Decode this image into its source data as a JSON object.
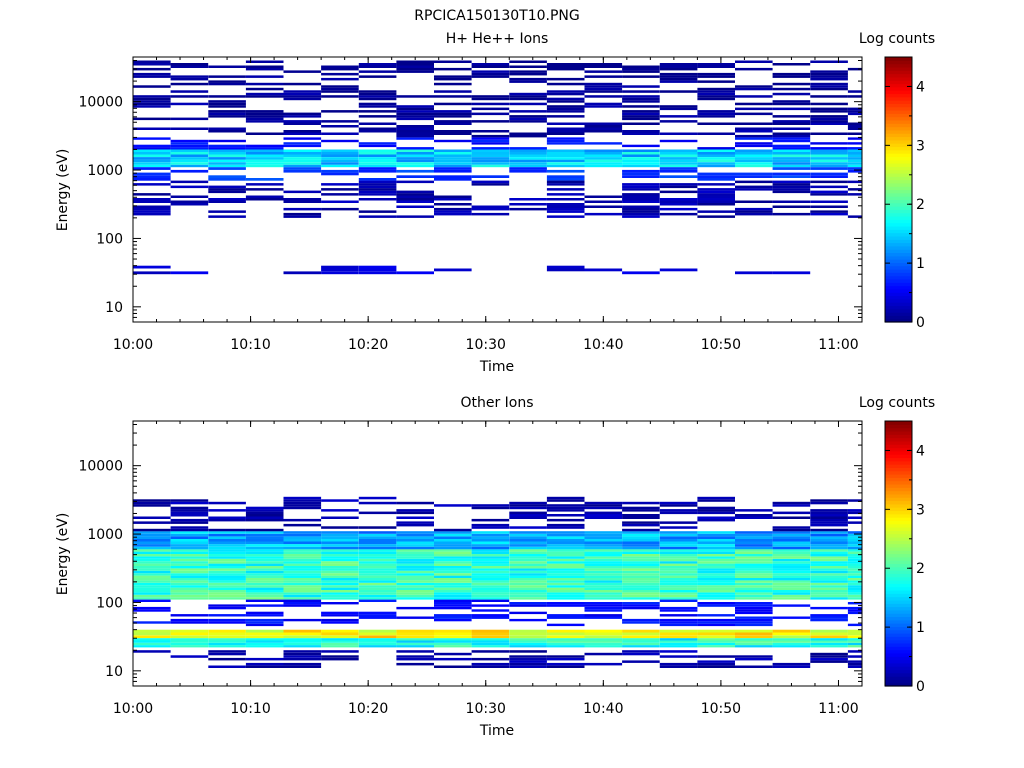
{
  "figure_title": "RPCICA150130T10.PNG",
  "chart_data": [
    {
      "type": "heatmap",
      "title": "H+ He++ Ions",
      "xlabel": "Time",
      "ylabel": "Energy (eV)",
      "x_ticks": [
        "10:00",
        "10:10",
        "10:20",
        "10:30",
        "10:40",
        "10:50",
        "11:00"
      ],
      "x_range": [
        "10:00",
        "11:02"
      ],
      "y_scale": "log",
      "y_ticks": [
        10,
        100,
        1000,
        10000
      ],
      "y_range": [
        6,
        45000
      ],
      "colorbar": {
        "label": "Log counts",
        "ticks": [
          0,
          1,
          2,
          3,
          4
        ],
        "range": [
          0,
          4.5
        ],
        "colormap": "jet"
      },
      "time_bins": [
        "10:01.6",
        "10:04.8",
        "10:08.0",
        "10:11.2",
        "10:14.4",
        "10:17.6",
        "10:20.8",
        "10:24.0",
        "10:27.2",
        "10:30.4",
        "10:33.6",
        "10:36.8",
        "10:40.0",
        "10:43.2",
        "10:46.4",
        "10:49.6",
        "10:52.8",
        "10:56.0",
        "10:59.2",
        "11:02.4"
      ],
      "bands": [
        {
          "energy_range": [
            1100,
            2000
          ],
          "log_counts": 1.5,
          "note": "main H+ band, roughly 1.3–1.7 across all time bins"
        },
        {
          "energy_range": [
            700,
            1100
          ],
          "log_counts": 0.8
        },
        {
          "energy_range": [
            2000,
            3000
          ],
          "log_counts": 0.6
        },
        {
          "energy_range": [
            200,
            700
          ],
          "log_counts": 0.2,
          "note": "sparse"
        },
        {
          "energy_range": [
            30,
            40
          ],
          "log_counts": 0.4,
          "note": "low-energy band"
        },
        {
          "energy_range": [
            3000,
            40000
          ],
          "log_counts": 0.1,
          "note": "sparse dark blue lines"
        }
      ]
    },
    {
      "type": "heatmap",
      "title": "Other Ions",
      "xlabel": "Time",
      "ylabel": "Energy (eV)",
      "x_ticks": [
        "10:00",
        "10:10",
        "10:20",
        "10:30",
        "10:40",
        "10:50",
        "11:00"
      ],
      "x_range": [
        "10:00",
        "11:02"
      ],
      "y_scale": "log",
      "y_ticks": [
        10,
        100,
        1000,
        10000
      ],
      "y_range": [
        6,
        45000
      ],
      "colorbar": {
        "label": "Log counts",
        "ticks": [
          0,
          1,
          2,
          3,
          4
        ],
        "range": [
          0,
          4.5
        ],
        "colormap": "jet"
      },
      "time_bins": [
        "10:01.6",
        "10:04.8",
        "10:08.0",
        "10:11.2",
        "10:14.4",
        "10:17.6",
        "10:20.8",
        "10:24.0",
        "10:27.2",
        "10:30.4",
        "10:33.6",
        "10:36.8",
        "10:40.0",
        "10:43.2",
        "10:46.4",
        "10:49.6",
        "10:52.8",
        "10:56.0",
        "10:59.2",
        "11:02.4"
      ],
      "bands": [
        {
          "energy_range": [
            30,
            40
          ],
          "log_counts": 2.8,
          "note": "yellow/orange band"
        },
        {
          "energy_range": [
            22,
            30
          ],
          "log_counts": 1.8
        },
        {
          "energy_range": [
            110,
            600
          ],
          "log_counts": 1.9,
          "note": "green/cyan broad band"
        },
        {
          "energy_range": [
            600,
            1100
          ],
          "log_counts": 1.3
        },
        {
          "energy_range": [
            45,
            110
          ],
          "log_counts": 0.6,
          "note": "sparse dark blue"
        },
        {
          "energy_range": [
            11,
            20
          ],
          "log_counts": 0.2,
          "note": "sparse low-energy blocks"
        },
        {
          "energy_range": [
            1100,
            3500
          ],
          "log_counts": 0.2,
          "note": "sparse lines"
        }
      ]
    }
  ]
}
